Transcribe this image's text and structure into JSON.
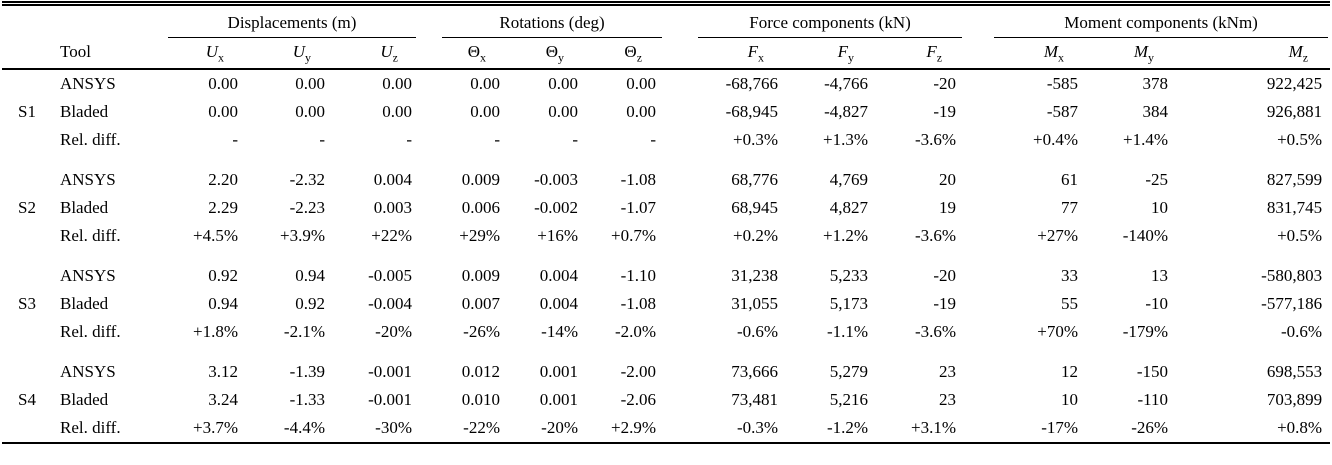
{
  "colors": {
    "text": "#000000",
    "background": "#ffffff",
    "rule": "#000000"
  },
  "header": {
    "tool_label": "Tool",
    "groups": [
      {
        "label": "Displacements (m)"
      },
      {
        "label": "Rotations (deg)"
      },
      {
        "label": "Force components (kN)"
      },
      {
        "label": "Moment components (kNm)"
      }
    ],
    "columns": [
      {
        "base": "U",
        "sub": "x",
        "italic": true
      },
      {
        "base": "U",
        "sub": "y",
        "italic": true
      },
      {
        "base": "U",
        "sub": "z",
        "italic": true
      },
      {
        "base": "Θ",
        "sub": "x",
        "italic": false
      },
      {
        "base": "Θ",
        "sub": "y",
        "italic": false
      },
      {
        "base": "Θ",
        "sub": "z",
        "italic": false
      },
      {
        "base": "F",
        "sub": "x",
        "italic": true
      },
      {
        "base": "F",
        "sub": "y",
        "italic": true
      },
      {
        "base": "F",
        "sub": "z",
        "italic": true
      },
      {
        "base": "M",
        "sub": "x",
        "italic": true
      },
      {
        "base": "M",
        "sub": "y",
        "italic": true
      },
      {
        "base": "M",
        "sub": "z",
        "italic": true
      }
    ]
  },
  "body": {
    "row_groups": [
      {
        "label": "S1",
        "rows": [
          {
            "tool": "ANSYS",
            "values": [
              "0.00",
              "0.00",
              "0.00",
              "0.00",
              "0.00",
              "0.00",
              "-68,766",
              "-4,766",
              "-20",
              "-585",
              "378",
              "922,425"
            ]
          },
          {
            "tool": "Bladed",
            "values": [
              "0.00",
              "0.00",
              "0.00",
              "0.00",
              "0.00",
              "0.00",
              "-68,945",
              "-4,827",
              "-19",
              "-587",
              "384",
              "926,881"
            ]
          },
          {
            "tool": "Rel. diff.",
            "values": [
              "-",
              "-",
              "-",
              "-",
              "-",
              "-",
              "+0.3%",
              "+1.3%",
              "-3.6%",
              "+0.4%",
              "+1.4%",
              "+0.5%"
            ]
          }
        ]
      },
      {
        "label": "S2",
        "rows": [
          {
            "tool": "ANSYS",
            "values": [
              "2.20",
              "-2.32",
              "0.004",
              "0.009",
              "-0.003",
              "-1.08",
              "68,776",
              "4,769",
              "20",
              "61",
              "-25",
              "827,599"
            ]
          },
          {
            "tool": "Bladed",
            "values": [
              "2.29",
              "-2.23",
              "0.003",
              "0.006",
              "-0.002",
              "-1.07",
              "68,945",
              "4,827",
              "19",
              "77",
              "10",
              "831,745"
            ]
          },
          {
            "tool": "Rel. diff.",
            "values": [
              "+4.5%",
              "+3.9%",
              "+22%",
              "+29%",
              "+16%",
              "+0.7%",
              "+0.2%",
              "+1.2%",
              "-3.6%",
              "+27%",
              "-140%",
              "+0.5%"
            ]
          }
        ]
      },
      {
        "label": "S3",
        "rows": [
          {
            "tool": "ANSYS",
            "values": [
              "0.92",
              "0.94",
              "-0.005",
              "0.009",
              "0.004",
              "-1.10",
              "31,238",
              "5,233",
              "-20",
              "33",
              "13",
              "-580,803"
            ]
          },
          {
            "tool": "Bladed",
            "values": [
              "0.94",
              "0.92",
              "-0.004",
              "0.007",
              "0.004",
              "-1.08",
              "31,055",
              "5,173",
              "-19",
              "55",
              "-10",
              "-577,186"
            ]
          },
          {
            "tool": "Rel. diff.",
            "values": [
              "+1.8%",
              "-2.1%",
              "-20%",
              "-26%",
              "-14%",
              "-2.0%",
              "-0.6%",
              "-1.1%",
              "-3.6%",
              "+70%",
              "-179%",
              "-0.6%"
            ]
          }
        ]
      },
      {
        "label": "S4",
        "rows": [
          {
            "tool": "ANSYS",
            "values": [
              "3.12",
              "-1.39",
              "-0.001",
              "0.012",
              "0.001",
              "-2.00",
              "73,666",
              "5,279",
              "23",
              "12",
              "-150",
              "698,553"
            ]
          },
          {
            "tool": "Bladed",
            "values": [
              "3.24",
              "-1.33",
              "-0.001",
              "0.010",
              "0.001",
              "-2.06",
              "73,481",
              "5,216",
              "23",
              "10",
              "-110",
              "703,899"
            ]
          },
          {
            "tool": "Rel. diff.",
            "values": [
              "+3.7%",
              "-4.4%",
              "-30%",
              "-22%",
              "-20%",
              "+2.9%",
              "-0.3%",
              "-1.2%",
              "+3.1%",
              "-17%",
              "-26%",
              "+0.8%"
            ]
          }
        ]
      }
    ]
  }
}
